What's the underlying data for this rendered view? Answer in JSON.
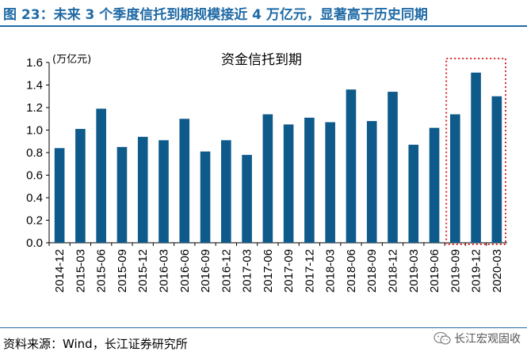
{
  "figure": {
    "title": "图 23：未来 3 个季度信托到期规模接近 4 万亿元，显著高于历史同期",
    "source": "资料来源：Wind，长江证券研究所",
    "brand": "长江宏观固收",
    "brand_icon": "wechat-icon"
  },
  "chart_data": {
    "type": "bar",
    "title": "资金信托到期",
    "ylabel": "(万亿元)",
    "ylim": [
      0,
      1.6
    ],
    "yticks": [
      "0.0",
      "0.2",
      "0.4",
      "0.6",
      "0.8",
      "1.0",
      "1.2",
      "1.4",
      "1.6"
    ],
    "categories": [
      "2014-12",
      "2015-03",
      "2015-06",
      "2015-09",
      "2015-12",
      "2016-03",
      "2016-06",
      "2016-09",
      "2016-12",
      "2017-03",
      "2017-06",
      "2017-09",
      "2017-12",
      "2018-03",
      "2018-06",
      "2018-09",
      "2018-12",
      "2019-03",
      "2019-06",
      "2019-09",
      "2019-12",
      "2020-03"
    ],
    "values": [
      0.84,
      1.01,
      1.19,
      0.85,
      0.94,
      0.91,
      1.1,
      0.81,
      0.91,
      0.78,
      1.14,
      1.05,
      1.11,
      1.07,
      1.36,
      1.08,
      1.34,
      0.87,
      1.02,
      1.14,
      1.51,
      1.3
    ],
    "bar_color": "#0e5a8a",
    "highlight": {
      "from": "2019-09",
      "to": "2020-03",
      "color": "#d62b2b",
      "style": "dotted-box"
    },
    "grid": false,
    "legend": "none"
  }
}
